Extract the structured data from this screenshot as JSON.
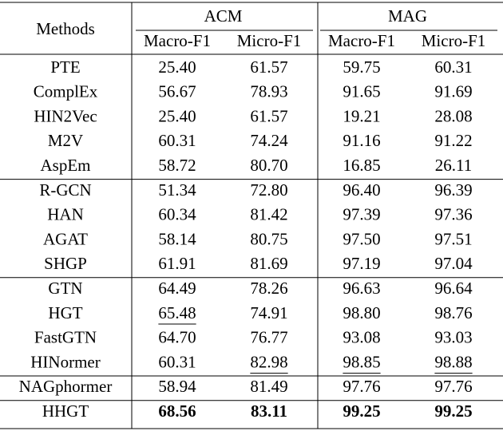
{
  "table": {
    "header": {
      "method_label": "Methods",
      "groups": [
        {
          "name": "ACM",
          "columns": [
            "Macro-F1",
            "Micro-F1"
          ]
        },
        {
          "name": "MAG",
          "columns": [
            "Macro-F1",
            "Micro-F1"
          ]
        }
      ]
    },
    "row_groups": [
      {
        "rows": [
          {
            "method": "PTE",
            "values": [
              "25.40",
              "61.57",
              "59.75",
              "60.31"
            ]
          },
          {
            "method": "ComplEx",
            "values": [
              "56.67",
              "78.93",
              "91.65",
              "91.69"
            ]
          },
          {
            "method": "HIN2Vec",
            "values": [
              "25.40",
              "61.57",
              "19.21",
              "28.08"
            ]
          },
          {
            "method": "M2V",
            "values": [
              "60.31",
              "74.24",
              "91.16",
              "91.22"
            ]
          },
          {
            "method": "AspEm",
            "values": [
              "58.72",
              "80.70",
              "16.85",
              "26.11"
            ]
          }
        ]
      },
      {
        "rows": [
          {
            "method": "R-GCN",
            "values": [
              "51.34",
              "72.80",
              "96.40",
              "96.39"
            ]
          },
          {
            "method": "HAN",
            "values": [
              "60.34",
              "81.42",
              "97.39",
              "97.36"
            ]
          },
          {
            "method": "AGAT",
            "values": [
              "58.14",
              "80.75",
              "97.50",
              "97.51"
            ]
          },
          {
            "method": "SHGP",
            "values": [
              "61.91",
              "81.69",
              "97.19",
              "97.04"
            ]
          }
        ]
      },
      {
        "rows": [
          {
            "method": "GTN",
            "values": [
              "64.49",
              "78.26",
              "96.63",
              "96.64"
            ]
          },
          {
            "method": "HGT",
            "values": [
              "65.48",
              "74.91",
              "98.80",
              "98.76"
            ],
            "underline": [
              0
            ]
          },
          {
            "method": "FastGTN",
            "values": [
              "64.70",
              "76.77",
              "93.08",
              "93.03"
            ]
          },
          {
            "method": "HINormer",
            "values": [
              "60.31",
              "82.98",
              "98.85",
              "98.88"
            ],
            "underline": [
              1,
              2,
              3
            ]
          }
        ]
      },
      {
        "rows": [
          {
            "method": "NAGphormer",
            "values": [
              "58.94",
              "81.49",
              "97.76",
              "97.76"
            ]
          }
        ]
      },
      {
        "rows": [
          {
            "method": "HHGT",
            "values": [
              "68.56",
              "83.11",
              "99.25",
              "99.25"
            ],
            "bold": true
          }
        ]
      }
    ]
  }
}
